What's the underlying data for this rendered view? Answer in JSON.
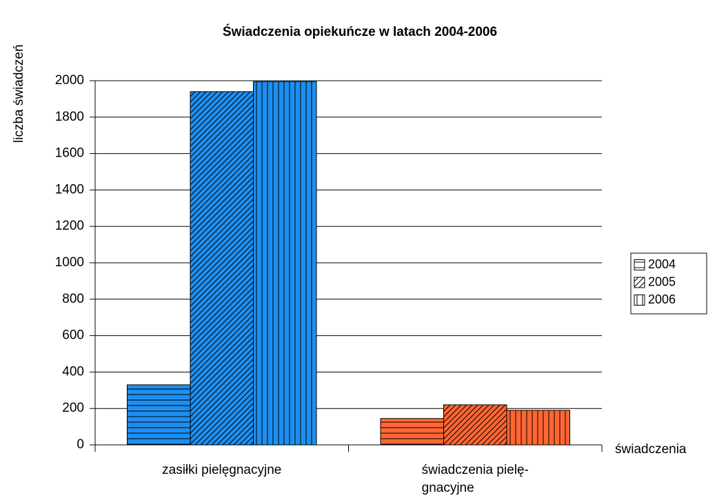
{
  "chart_data": {
    "type": "bar",
    "title": "Świadczenia opiekuńcze w latach 2004-2006",
    "y_label": "liczba świadczeń",
    "x_label": "świadczenia",
    "categories": [
      [
        "zasiłki pielęgnacyjne"
      ],
      [
        "świadczenia pielę-",
        "gnacyjne"
      ]
    ],
    "category_colors": [
      "#1e8ff0",
      "#ff6633"
    ],
    "series": [
      {
        "name": "2004",
        "pattern": "horizontal",
        "values": [
          330,
          145
        ]
      },
      {
        "name": "2005",
        "pattern": "diagonal",
        "values": [
          1940,
          220
        ]
      },
      {
        "name": "2006",
        "pattern": "vertical",
        "values": [
          1995,
          190
        ]
      }
    ],
    "ylim": [
      0,
      2000
    ],
    "yticks": [
      0,
      200,
      400,
      600,
      800,
      1000,
      1200,
      1400,
      1600,
      1800,
      2000
    ],
    "grid": true,
    "legend": "right"
  }
}
